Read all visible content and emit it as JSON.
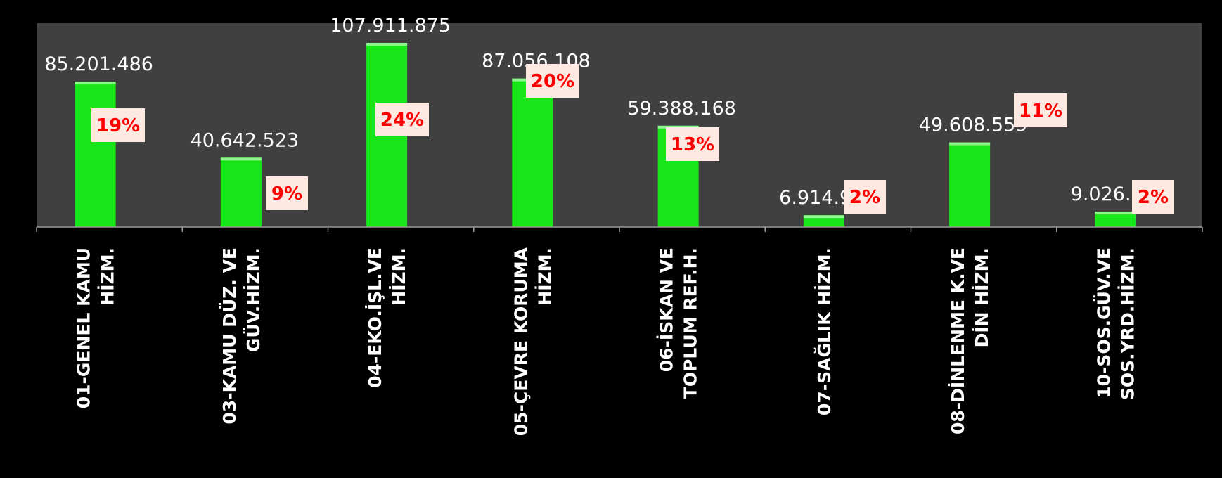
{
  "chart_data": {
    "type": "bar",
    "title": "",
    "xlabel": "",
    "ylabel": "",
    "ylim": [
      0,
      116000000
    ],
    "grid": false,
    "legend": "none",
    "colors": {
      "bar": "#19e619",
      "plot_background": "#404040",
      "page_background": "#000000",
      "value_label": "#ffffff",
      "percent_text": "#ff0000",
      "percent_box": "#fde9e1"
    },
    "categories": [
      [
        "01-GENEL KAMU",
        "HİZM."
      ],
      [
        "03-KAMU DÜZ. VE",
        "GÜV.HİZM."
      ],
      [
        "04-EKO.İŞL.VE",
        "HİZM."
      ],
      [
        "05-ÇEVRE KORUMA",
        "HİZM."
      ],
      [
        "06-İSKAN VE",
        "TOPLUM REF.H."
      ],
      [
        "07-SAĞLIK HİZM."
      ],
      [
        "08-DİNLENME K.VE",
        "DİN HİZM."
      ],
      [
        "10-SOS.GÜV.VE",
        "SOS.YRD.HİZM."
      ]
    ],
    "values": [
      85201486,
      40642523,
      107911875,
      87056108,
      59388168,
      6914929,
      49608559,
      9026562
    ],
    "value_labels": [
      "85.201.486",
      "40.642.523",
      "107.911.875",
      "87.056.108",
      "59.388.168",
      "6.914.929",
      "49.608.559",
      "9.026.562"
    ],
    "percent_labels": [
      "19%",
      "9%",
      "24%",
      "20%",
      "13%",
      "2%",
      "11%",
      "2%"
    ]
  }
}
